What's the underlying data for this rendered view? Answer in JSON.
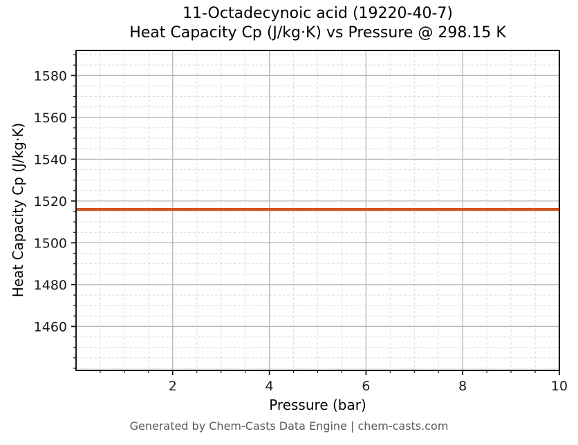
{
  "chart_data": {
    "type": "line",
    "title": "11-Octadecynoic acid (19220-40-7)\nHeat Capacity Cp (J/kg·K) vs Pressure @ 298.15 K",
    "title_line1": "11-Octadecynoic acid (19220-40-7)",
    "title_line2": "Heat Capacity Cp (J/kg·K) vs Pressure @ 298.15 K",
    "xlabel": "Pressure (bar)",
    "ylabel": "Heat Capacity Cp (J/kg·K)",
    "xlim": [
      0,
      10
    ],
    "ylim": [
      1439,
      1592
    ],
    "x_major_ticks": [
      2,
      4,
      6,
      8,
      10
    ],
    "x_minor_step": 0.5,
    "y_major_ticks": [
      1460,
      1480,
      1500,
      1520,
      1540,
      1560,
      1580
    ],
    "y_minor_step": 5,
    "grid": {
      "major": true,
      "minor": true,
      "minor_style": "dashed"
    },
    "legend": "none",
    "series": [
      {
        "name": "Heat Capacity Cp",
        "x": [
          0,
          10
        ],
        "y": [
          1516,
          1516
        ],
        "color": "#d2531d",
        "linewidth": 4
      }
    ]
  },
  "footer": {
    "credit": "Generated by Chem-Casts Data Engine | chem-casts.com"
  },
  "colors": {
    "background": "#ffffff",
    "title_text": "#000000",
    "axis_label_text": "#000000",
    "tick_label_text": "#1a1a1a",
    "spine": "#1a1a1a",
    "tick": "#1a1a1a",
    "grid_major": "#b3b3b3",
    "grid_minor": "#dcdcdc",
    "line": "#d2531d",
    "footer_text": "#595959"
  }
}
